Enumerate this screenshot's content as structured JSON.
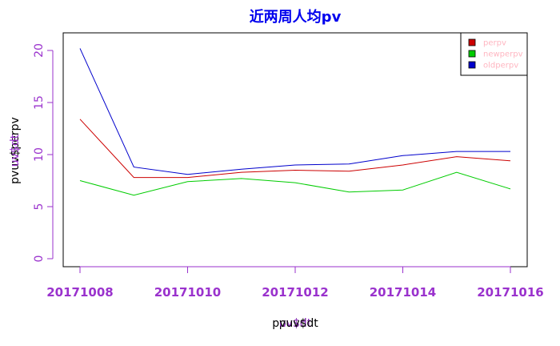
{
  "chart_data": {
    "type": "line",
    "title": "近两周人均pv",
    "xlabel_layers": [
      {
        "text": "pv$dt",
        "color": "#000000"
      },
      {
        "text": "uv$dt",
        "color": "#9a32cd"
      },
      {
        "text": "pvuv$dt",
        "color": "#000000"
      }
    ],
    "ylabel_layers": [
      {
        "text": "pvuv$perpv",
        "color": "#000000"
      },
      {
        "text": "uv$dt",
        "color": "#9a32cd"
      }
    ],
    "x": [
      20171008,
      20171009,
      20171010,
      20171011,
      20171012,
      20171013,
      20171014,
      20171015,
      20171016
    ],
    "x_ticks": [
      "20171008",
      "20171010",
      "20171012",
      "20171014",
      "20171016"
    ],
    "x_tick_values": [
      20171008,
      20171010,
      20171012,
      20171014,
      20171016
    ],
    "y_ticks": [
      0,
      5,
      10,
      15,
      20
    ],
    "xlim": [
      20171008,
      20171016
    ],
    "ylim": [
      0,
      20
    ],
    "series": [
      {
        "name": "perpv",
        "color": "#cc0000",
        "values": [
          13.4,
          7.8,
          7.8,
          8.3,
          8.5,
          8.4,
          9.0,
          9.8,
          9.4
        ]
      },
      {
        "name": "newperpv",
        "color": "#00cc00",
        "values": [
          7.5,
          6.1,
          7.4,
          7.7,
          7.3,
          6.4,
          6.6,
          8.3,
          6.7
        ]
      },
      {
        "name": "oldperpv",
        "color": "#0000cc",
        "values": [
          20.2,
          8.8,
          8.1,
          8.6,
          9.0,
          9.1,
          9.9,
          10.3,
          10.3
        ]
      }
    ],
    "legend_position": "top-right",
    "grid": false,
    "axis_color": "#9a32cd"
  }
}
